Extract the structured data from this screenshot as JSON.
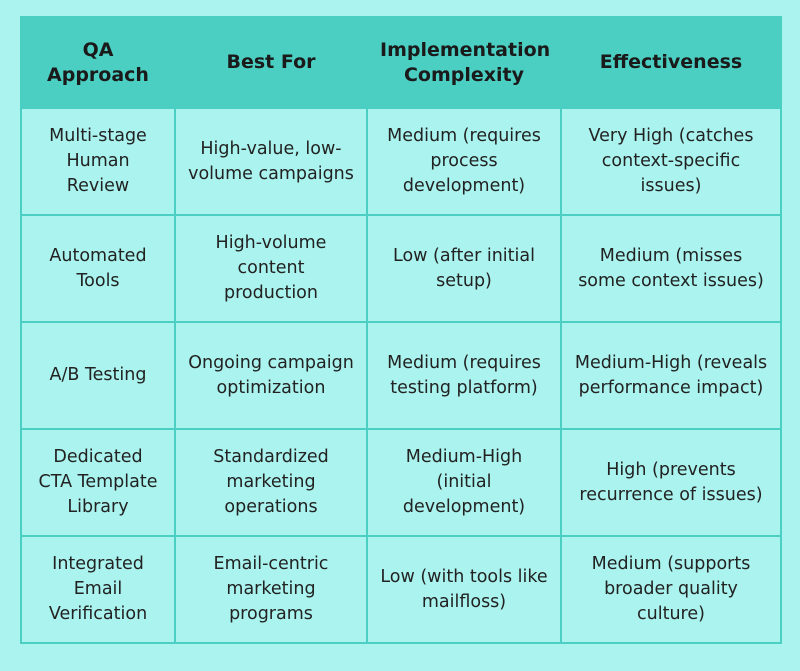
{
  "table": {
    "headers": [
      "QA Approach",
      "Best For",
      "Implementation Complexity",
      "Effectiveness"
    ],
    "rows": [
      [
        "Multi-stage Human Review",
        "High-value, low-volume campaigns",
        "Medium (requires process development)",
        "Very High (catches context-specific issues)"
      ],
      [
        "Automated Tools",
        "High-volume content production",
        "Low (after initial setup)",
        "Medium (misses some context issues)"
      ],
      [
        "A/B Testing",
        "Ongoing campaign optimization",
        "Medium (requires testing platform)",
        "Medium-High (reveals performance impact)"
      ],
      [
        "Dedicated CTA Template Library",
        "Standardized marketing operations",
        "Medium-High (initial development)",
        "High (prevents recurrence of issues)"
      ],
      [
        "Integrated Email Verification",
        "Email-centric marketing programs",
        "Low (with tools like mailfloss)",
        "Medium (supports broader quality culture)"
      ]
    ]
  },
  "colors": {
    "background": "#aaf3ee",
    "header": "#4ccfc3",
    "border": "#4ccfc3"
  }
}
